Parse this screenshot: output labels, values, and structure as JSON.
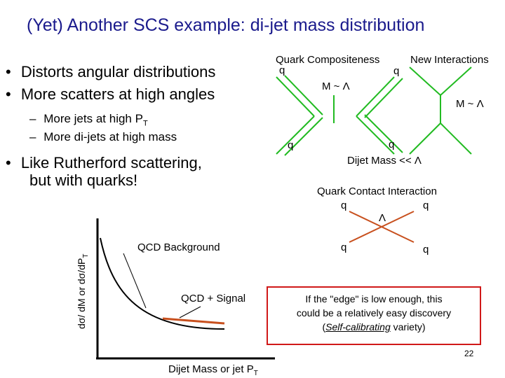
{
  "title": "(Yet) Another SCS example: di-jet mass distribution",
  "bullets": [
    "Distorts angular distributions",
    "More scatters at high angles"
  ],
  "sub_bullets": [
    {
      "text": "More jets at high P",
      "sub": "T"
    },
    {
      "text": "More di-jets at high mass",
      "sub": ""
    }
  ],
  "bullet3_line1": "Like Rutherford scattering,",
  "bullet3_line2": "but with quarks!",
  "bullet_char": "•",
  "dash_char": "–",
  "diagrams": {
    "quark_comp_label": "Quark Compositeness",
    "new_int_label": "New Interactions",
    "q": "q",
    "m_lambda": "M ~ Λ",
    "dijet_mass_lt": "Dijet Mass << Λ",
    "contact_label": "Quark Contact Interaction",
    "lambda": "Λ"
  },
  "plot": {
    "ylabel": "dσ/ dM or dσ/dP",
    "ylabel_sub": "T",
    "xlabel": "Dijet Mass or jet P",
    "xlabel_sub": "T",
    "bg_label": "QCD Background",
    "signal_label": "QCD + Signal"
  },
  "note": {
    "line1": "If the \"edge\" is low enough, this",
    "line2": "could be a relatively easy discovery",
    "open": "(",
    "emph": "Self-calibrating",
    "close": " variety)"
  },
  "page_number": "22",
  "colors": {
    "title": "#1a1a8c",
    "diagram": "#22bb22",
    "signal": "#c8501e",
    "note_border": "#d01818"
  }
}
